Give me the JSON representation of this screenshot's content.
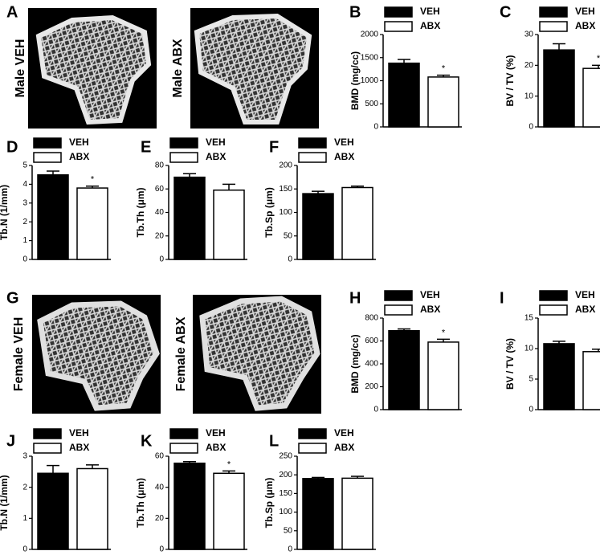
{
  "images": [
    {
      "panel": "A",
      "labels": [
        "Male VEH",
        "Male ABX"
      ]
    },
    {
      "panel": "G",
      "labels": [
        "Female VEH",
        "Female ABX"
      ]
    }
  ],
  "chart_data": [
    {
      "panel": "B",
      "type": "bar",
      "ylabel": "BMD (mg/cc)",
      "categories": [
        "VEH",
        "ABX"
      ],
      "colors": [
        "#000000",
        "#ffffff"
      ],
      "values": [
        1380,
        1080
      ],
      "errors": [
        80,
        40
      ],
      "ylim": [
        0,
        2000
      ],
      "yticks": [
        0,
        500,
        1000,
        1500,
        2000
      ],
      "annotations": [
        {
          "index": 1,
          "text": "*"
        }
      ]
    },
    {
      "panel": "C",
      "type": "bar",
      "ylabel": "BV / TV (%)",
      "categories": [
        "VEH",
        "ABX"
      ],
      "colors": [
        "#000000",
        "#ffffff"
      ],
      "values": [
        25,
        19
      ],
      "errors": [
        2,
        1
      ],
      "ylim": [
        0,
        30
      ],
      "yticks": [
        0,
        10,
        20,
        30
      ],
      "annotations": [
        {
          "index": 1,
          "text": "*"
        }
      ]
    },
    {
      "panel": "D",
      "type": "bar",
      "ylabel": "Tb.N (1/mm)",
      "categories": [
        "VEH",
        "ABX"
      ],
      "colors": [
        "#000000",
        "#ffffff"
      ],
      "values": [
        4.5,
        3.8
      ],
      "errors": [
        0.2,
        0.1
      ],
      "ylim": [
        0,
        5
      ],
      "yticks": [
        0,
        1,
        2,
        3,
        4,
        5
      ],
      "annotations": [
        {
          "index": 1,
          "text": "*"
        }
      ]
    },
    {
      "panel": "E",
      "type": "bar",
      "ylabel": "Tb.Th (μm)",
      "categories": [
        "VEH",
        "ABX"
      ],
      "colors": [
        "#000000",
        "#ffffff"
      ],
      "values": [
        70,
        59
      ],
      "errors": [
        3,
        5
      ],
      "ylim": [
        0,
        80
      ],
      "yticks": [
        0,
        20,
        40,
        60,
        80
      ],
      "annotations": []
    },
    {
      "panel": "F",
      "type": "bar",
      "ylabel": "Tb.Sp (μm)",
      "categories": [
        "VEH",
        "ABX"
      ],
      "colors": [
        "#000000",
        "#ffffff"
      ],
      "values": [
        140,
        153
      ],
      "errors": [
        5,
        3
      ],
      "ylim": [
        0,
        200
      ],
      "yticks": [
        0,
        50,
        100,
        150,
        200
      ],
      "annotations": []
    },
    {
      "panel": "H",
      "type": "bar",
      "ylabel": "BMD (mg/cc)",
      "categories": [
        "VEH",
        "ABX"
      ],
      "colors": [
        "#000000",
        "#ffffff"
      ],
      "values": [
        690,
        590
      ],
      "errors": [
        15,
        25
      ],
      "ylim": [
        0,
        800
      ],
      "yticks": [
        0,
        200,
        400,
        600,
        800
      ],
      "annotations": [
        {
          "index": 1,
          "text": "*"
        }
      ]
    },
    {
      "panel": "I",
      "type": "bar",
      "ylabel": "BV / TV (%)",
      "categories": [
        "VEH",
        "ABX"
      ],
      "colors": [
        "#000000",
        "#ffffff"
      ],
      "values": [
        10.8,
        9.5
      ],
      "errors": [
        0.4,
        0.4
      ],
      "ylim": [
        0,
        15
      ],
      "yticks": [
        0,
        5,
        10,
        15
      ],
      "annotations": []
    },
    {
      "panel": "J",
      "type": "bar",
      "ylabel": "Tb.N (1/mm)",
      "categories": [
        "VEH",
        "ABX"
      ],
      "colors": [
        "#000000",
        "#ffffff"
      ],
      "values": [
        2.45,
        2.6
      ],
      "errors": [
        0.25,
        0.12
      ],
      "ylim": [
        0,
        3
      ],
      "yticks": [
        0,
        1,
        2,
        3
      ],
      "annotations": []
    },
    {
      "panel": "K",
      "type": "bar",
      "ylabel": "Tb.Th (μm)",
      "categories": [
        "VEH",
        "ABX"
      ],
      "colors": [
        "#000000",
        "#ffffff"
      ],
      "values": [
        55.5,
        49
      ],
      "errors": [
        1,
        1.5
      ],
      "ylim": [
        0,
        60
      ],
      "yticks": [
        0,
        20,
        40,
        60
      ],
      "annotations": [
        {
          "index": 1,
          "text": "*"
        }
      ]
    },
    {
      "panel": "L",
      "type": "bar",
      "ylabel": "Tb.Sp (μm)",
      "categories": [
        "VEH",
        "ABX"
      ],
      "colors": [
        "#000000",
        "#ffffff"
      ],
      "values": [
        190,
        191
      ],
      "errors": [
        3,
        5
      ],
      "ylim": [
        0,
        250
      ],
      "yticks": [
        0,
        50,
        100,
        150,
        200,
        250
      ],
      "annotations": []
    }
  ]
}
